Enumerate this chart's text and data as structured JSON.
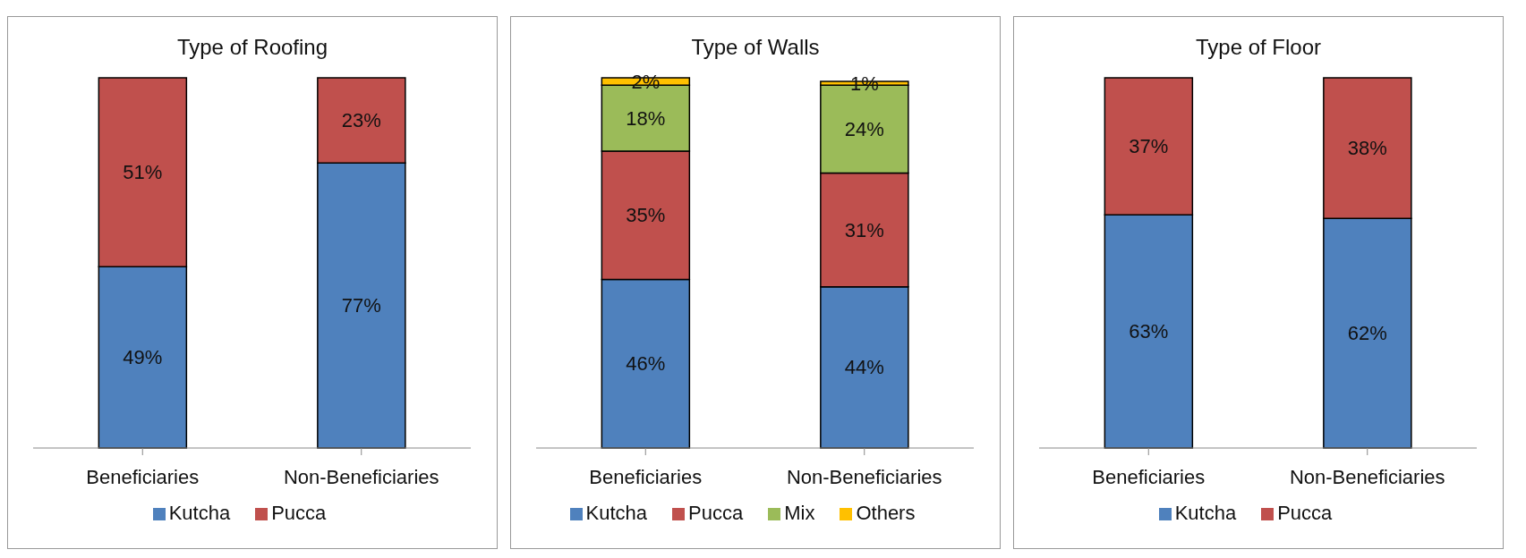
{
  "chart_data": [
    {
      "type": "bar",
      "title": "Type of Roofing",
      "categories": [
        "Beneficiaries",
        "Non-Beneficiaries"
      ],
      "stacked": true,
      "legend": "bottom",
      "series": [
        {
          "name": "Kutcha",
          "color": "#4f81bd",
          "values": [
            49,
            77
          ],
          "value_labels": [
            "49%",
            "77%"
          ]
        },
        {
          "name": "Pucca",
          "color": "#c0504d",
          "values": [
            51,
            23
          ],
          "value_labels": [
            "51%",
            "23%"
          ]
        }
      ]
    },
    {
      "type": "bar",
      "title": "Type of Walls",
      "categories": [
        "Beneficiaries",
        "Non-Beneficiaries"
      ],
      "stacked": true,
      "legend": "bottom",
      "series": [
        {
          "name": "Kutcha",
          "color": "#4f81bd",
          "values": [
            46,
            44
          ],
          "value_labels": [
            "46%",
            "44%"
          ]
        },
        {
          "name": "Pucca",
          "color": "#c0504d",
          "values": [
            35,
            31
          ],
          "value_labels": [
            "35%",
            "31%"
          ]
        },
        {
          "name": "Mix",
          "color": "#9bbb59",
          "values": [
            18,
            24
          ],
          "value_labels": [
            "18%",
            "24%"
          ]
        },
        {
          "name": "Others",
          "color": "#ffc000",
          "values": [
            2,
            1
          ],
          "value_labels": [
            "2%",
            "1%"
          ]
        }
      ]
    },
    {
      "type": "bar",
      "title": "Type of Floor",
      "categories": [
        "Beneficiaries",
        "Non-Beneficiaries"
      ],
      "stacked": true,
      "legend": "bottom",
      "series": [
        {
          "name": "Kutcha",
          "color": "#4f81bd",
          "values": [
            63,
            62
          ],
          "value_labels": [
            "63%",
            "62%"
          ]
        },
        {
          "name": "Pucca",
          "color": "#c0504d",
          "values": [
            37,
            38
          ],
          "value_labels": [
            "37%",
            "38%"
          ]
        }
      ]
    }
  ]
}
